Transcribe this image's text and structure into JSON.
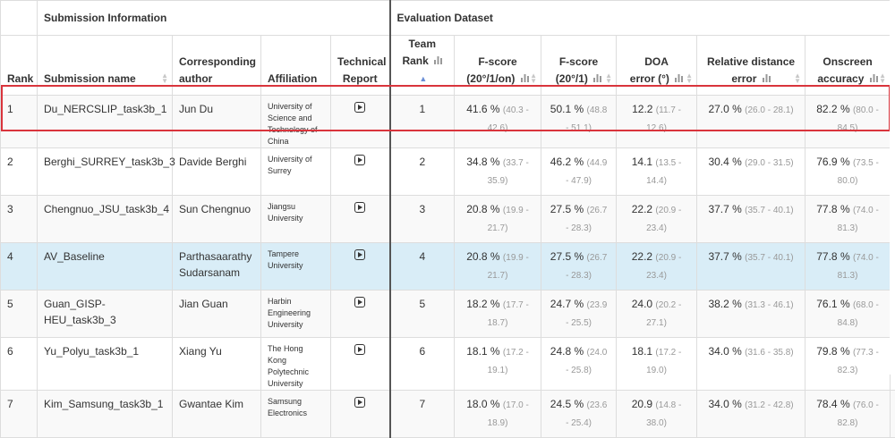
{
  "groups": {
    "submission": "Submission Information",
    "evaluation": "Evaluation Dataset"
  },
  "columns": {
    "rank": "Rank",
    "name": "Submission name",
    "author_l1": "Corresponding",
    "author_l2": "author",
    "affiliation": "Affiliation",
    "report_l1": "Technical",
    "report_l2": "Report",
    "team_l1": "Team",
    "team_l2": "Rank",
    "fscore1_l1": "F-score",
    "fscore1_l2": "(20°/1/on)",
    "fscore2_l1": "F-score",
    "fscore2_l2": "(20°/1)",
    "doa_l1": "DOA",
    "doa_l2": "error (°)",
    "rel_l1": "Relative distance",
    "rel_l2": "error",
    "onscreen_l1": "Onscreen",
    "onscreen_l2": "accuracy"
  },
  "icons": {
    "report": "play-document-icon",
    "bars": "bar-chart-icon",
    "sort": "sort-icon"
  },
  "colors": {
    "highlight_border": "#d9343c",
    "baseline_row": "#d9edf7",
    "ci_text": "#999999"
  },
  "rows": [
    {
      "rank": "1",
      "name": "Du_NERCSLIP_task3b_1",
      "author": "Jun Du",
      "affiliation": "University of Science and Technology of China",
      "team_rank": "1",
      "f1": "41.6 %",
      "f1_ci": "(40.3 - 42.6)",
      "f2": "50.1 %",
      "f2_ci": "(48.8 - 51.1)",
      "doa": "12.2",
      "doa_ci": "(11.7 - 12.6)",
      "rel": "27.0 %",
      "rel_ci": "(26.0 - 28.1)",
      "on": "82.2 %",
      "on_ci": "(80.0 - 84.5)"
    },
    {
      "rank": "2",
      "name": "Berghi_SURREY_task3b_3",
      "author": "Davide Berghi",
      "affiliation": "University of Surrey",
      "team_rank": "2",
      "f1": "34.8 %",
      "f1_ci": "(33.7 - 35.9)",
      "f2": "46.2 %",
      "f2_ci": "(44.9 - 47.9)",
      "doa": "14.1",
      "doa_ci": "(13.5 - 14.4)",
      "rel": "30.4 %",
      "rel_ci": "(29.0 - 31.5)",
      "on": "76.9 %",
      "on_ci": "(73.5 - 80.0)"
    },
    {
      "rank": "3",
      "name": "Chengnuo_JSU_task3b_4",
      "author": "Sun Chengnuo",
      "affiliation": "Jiangsu University",
      "team_rank": "3",
      "f1": "20.8 %",
      "f1_ci": "(19.9 - 21.7)",
      "f2": "27.5 %",
      "f2_ci": "(26.7 - 28.3)",
      "doa": "22.2",
      "doa_ci": "(20.9 - 23.4)",
      "rel": "37.7 %",
      "rel_ci": "(35.7 - 40.1)",
      "on": "77.8 %",
      "on_ci": "(74.0 - 81.3)"
    },
    {
      "rank": "4",
      "name": "AV_Baseline",
      "author": "Parthasaarathy Sudarsanam",
      "affiliation": "Tampere University",
      "team_rank": "4",
      "f1": "20.8 %",
      "f1_ci": "(19.9 - 21.7)",
      "f2": "27.5 %",
      "f2_ci": "(26.7 - 28.3)",
      "doa": "22.2",
      "doa_ci": "(20.9 - 23.4)",
      "rel": "37.7 %",
      "rel_ci": "(35.7 - 40.1)",
      "on": "77.8 %",
      "on_ci": "(74.0 - 81.3)"
    },
    {
      "rank": "5",
      "name": "Guan_GISP-HEU_task3b_3",
      "author": "Jian Guan",
      "affiliation": "Harbin Engineering University",
      "team_rank": "5",
      "f1": "18.2 %",
      "f1_ci": "(17.7 - 18.7)",
      "f2": "24.7 %",
      "f2_ci": "(23.9 - 25.5)",
      "doa": "24.0",
      "doa_ci": "(20.2 - 27.1)",
      "rel": "38.2 %",
      "rel_ci": "(31.3 - 46.1)",
      "on": "76.1 %",
      "on_ci": "(68.0 - 84.8)"
    },
    {
      "rank": "6",
      "name": "Yu_Polyu_task3b_1",
      "author": "Xiang Yu",
      "affiliation": "The Hong Kong Polytechnic University",
      "team_rank": "6",
      "f1": "18.1 %",
      "f1_ci": "(17.2 - 19.1)",
      "f2": "24.8 %",
      "f2_ci": "(24.0 - 25.8)",
      "doa": "18.1",
      "doa_ci": "(17.2 - 19.0)",
      "rel": "34.0 %",
      "rel_ci": "(31.6 - 35.8)",
      "on": "79.8 %",
      "on_ci": "(77.3 - 82.3)"
    },
    {
      "rank": "7",
      "name": "Kim_Samsung_task3b_1",
      "author": "Gwantae Kim",
      "affiliation": "Samsung Electronics",
      "team_rank": "7",
      "f1": "18.0 %",
      "f1_ci": "(17.0 - 18.9)",
      "f2": "24.5 %",
      "f2_ci": "(23.6 - 25.4)",
      "doa": "20.9",
      "doa_ci": "(14.8 - 38.0)",
      "rel": "34.0 %",
      "rel_ci": "(31.2 - 42.8)",
      "on": "78.4 %",
      "on_ci": "(76.0 - 82.8)"
    }
  ]
}
